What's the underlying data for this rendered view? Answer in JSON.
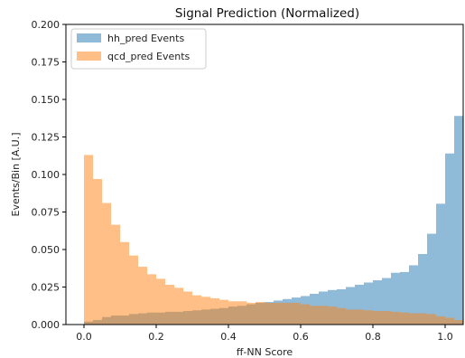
{
  "chart_data": {
    "type": "bar",
    "title": "Signal Prediction (Normalized)",
    "xlabel": "ff-NN Score",
    "ylabel": "Events/Bin [A.U.]",
    "xlim": [
      -0.05,
      1.05
    ],
    "ylim": [
      0,
      0.2
    ],
    "xticks": [
      "0.0",
      "0.2",
      "0.4",
      "0.6",
      "0.8",
      "1.0"
    ],
    "yticks": [
      "0.000",
      "0.025",
      "0.050",
      "0.075",
      "0.100",
      "0.125",
      "0.150",
      "0.175",
      "0.200"
    ],
    "bin_edges_start": 0.0,
    "bin_width": 0.025,
    "legend_position": "top-left",
    "series": [
      {
        "name": "hh_pred Events",
        "color": "#1f77b4",
        "alpha": 0.5,
        "values": [
          0.002,
          0.003,
          0.005,
          0.006,
          0.006,
          0.007,
          0.0075,
          0.008,
          0.008,
          0.0085,
          0.0085,
          0.009,
          0.0095,
          0.01,
          0.0105,
          0.011,
          0.012,
          0.0125,
          0.0135,
          0.0145,
          0.015,
          0.016,
          0.017,
          0.018,
          0.019,
          0.0205,
          0.022,
          0.023,
          0.0235,
          0.025,
          0.0265,
          0.028,
          0.0295,
          0.031,
          0.0345,
          0.035,
          0.0395,
          0.047,
          0.0605,
          0.0805,
          0.114,
          0.139
        ]
      },
      {
        "name": "qcd_pred Events",
        "color": "#ff7f0e",
        "alpha": 0.5,
        "values": [
          0.113,
          0.097,
          0.081,
          0.0665,
          0.055,
          0.046,
          0.0385,
          0.0335,
          0.0305,
          0.0265,
          0.0245,
          0.022,
          0.0195,
          0.0185,
          0.0175,
          0.0165,
          0.0155,
          0.0155,
          0.0145,
          0.015,
          0.0145,
          0.0145,
          0.0145,
          0.0145,
          0.0135,
          0.0125,
          0.0125,
          0.012,
          0.011,
          0.01,
          0.01,
          0.0095,
          0.009,
          0.009,
          0.0085,
          0.008,
          0.0075,
          0.0075,
          0.007,
          0.0055,
          0.0045,
          0.003
        ]
      }
    ]
  }
}
